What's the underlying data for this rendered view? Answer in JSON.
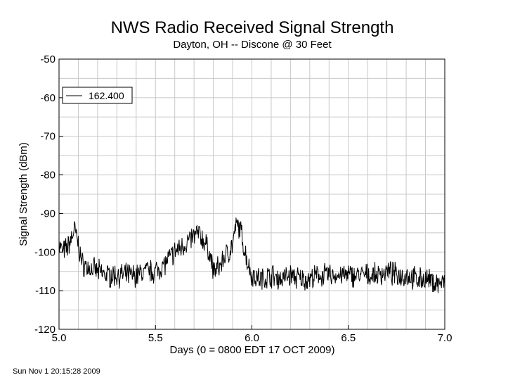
{
  "chart_data": {
    "type": "line",
    "title": "NWS Radio Received Signal Strength",
    "subtitle": "Dayton, OH -- Discone @ 30 Feet",
    "xlabel": "Days (0 = 0800 EDT 17 OCT 2009)",
    "ylabel": "Signal Strength (dBm)",
    "xlim": [
      5.0,
      7.0
    ],
    "ylim": [
      -120,
      -50
    ],
    "x_ticks": [
      "5.0",
      "5.5",
      "6.0",
      "6.5",
      "7.0"
    ],
    "y_ticks": [
      "-50",
      "-60",
      "-70",
      "-80",
      "-90",
      "-100",
      "-110",
      "-120"
    ],
    "grid": true,
    "legend_position": "top-left",
    "series": [
      {
        "name": "162.400",
        "color": "#000000",
        "x": [
          5.0,
          5.02,
          5.04,
          5.06,
          5.08,
          5.1,
          5.12,
          5.15,
          5.2,
          5.25,
          5.3,
          5.35,
          5.4,
          5.45,
          5.5,
          5.55,
          5.6,
          5.65,
          5.7,
          5.72,
          5.75,
          5.78,
          5.8,
          5.83,
          5.86,
          5.88,
          5.9,
          5.92,
          5.94,
          5.96,
          5.98,
          6.0,
          6.05,
          6.1,
          6.15,
          6.2,
          6.25,
          6.3,
          6.35,
          6.4,
          6.45,
          6.5,
          6.55,
          6.6,
          6.65,
          6.7,
          6.75,
          6.8,
          6.85,
          6.9,
          6.95,
          7.0
        ],
        "values": [
          -98,
          -100,
          -99,
          -97,
          -94,
          -98,
          -103,
          -104,
          -105,
          -106,
          -106,
          -106,
          -106,
          -105,
          -105,
          -103,
          -100,
          -98,
          -96,
          -95,
          -97,
          -100,
          -105,
          -104,
          -101,
          -100,
          -98,
          -93,
          -94,
          -99,
          -103,
          -106,
          -107,
          -106,
          -107,
          -106,
          -107,
          -107,
          -106,
          -106,
          -106,
          -106,
          -106,
          -106,
          -106,
          -105,
          -106,
          -106,
          -107,
          -107,
          -108,
          -108
        ]
      }
    ]
  },
  "footer": {
    "timestamp": "Sun Nov  1 20:15:28 2009"
  }
}
